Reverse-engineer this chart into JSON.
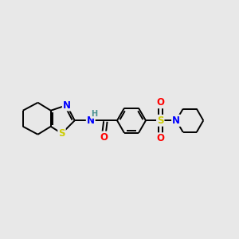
{
  "bg_color": "#e8e8e8",
  "bond_color": "#000000",
  "bond_lw": 1.4,
  "N_color": "#0000ff",
  "S_color": "#cccc00",
  "O_color": "#ff0000",
  "H_color": "#4a9090",
  "font_size": 8.5,
  "fig_w": 3.0,
  "fig_h": 3.0,
  "dpi": 100,
  "xlim": [
    0,
    12
  ],
  "ylim": [
    2,
    8
  ]
}
